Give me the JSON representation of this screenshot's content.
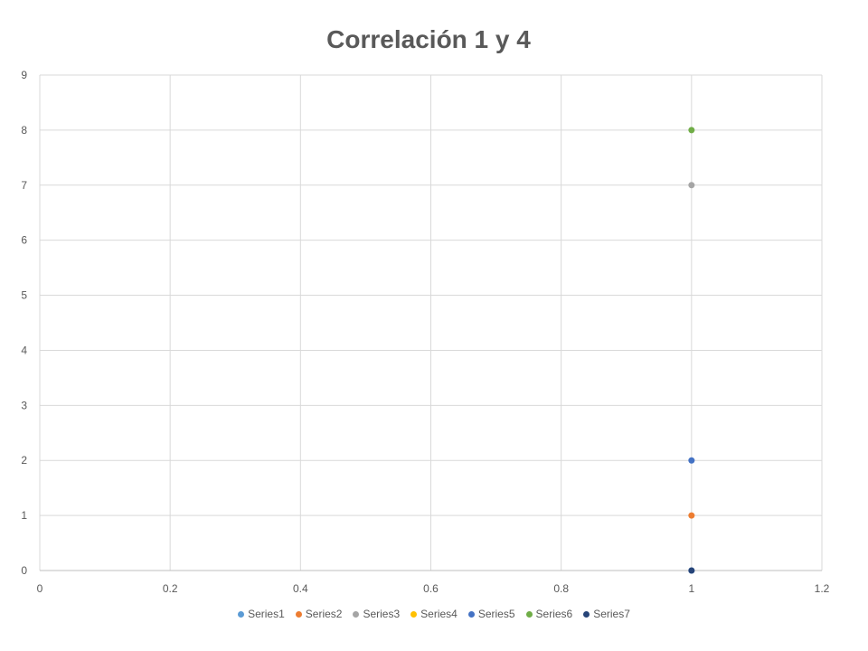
{
  "chart_data": {
    "type": "scatter",
    "title": "Correlación 1 y 4",
    "xlabel": "",
    "ylabel": "",
    "xlim": [
      0,
      1.2
    ],
    "ylim": [
      0,
      9
    ],
    "x_ticks": [
      "0",
      "0.2",
      "0.4",
      "0.6",
      "0.8",
      "1",
      "1.2"
    ],
    "y_ticks": [
      "0",
      "1",
      "2",
      "3",
      "4",
      "5",
      "6",
      "7",
      "8",
      "9"
    ],
    "grid": true,
    "legend_position": "bottom",
    "series": [
      {
        "name": "Series1",
        "color": "#5B9BD5",
        "points": [
          [
            1,
            0
          ]
        ]
      },
      {
        "name": "Series2",
        "color": "#ED7D31",
        "points": [
          [
            1,
            1
          ]
        ]
      },
      {
        "name": "Series3",
        "color": "#A5A5A5",
        "points": [
          [
            1,
            7
          ]
        ]
      },
      {
        "name": "Series4",
        "color": "#FFC000",
        "points": []
      },
      {
        "name": "Series5",
        "color": "#4472C4",
        "points": [
          [
            1,
            2
          ]
        ]
      },
      {
        "name": "Series6",
        "color": "#70AD47",
        "points": [
          [
            1,
            8
          ]
        ]
      },
      {
        "name": "Series7",
        "color": "#264478",
        "points": [
          [
            1,
            0
          ]
        ]
      }
    ]
  }
}
